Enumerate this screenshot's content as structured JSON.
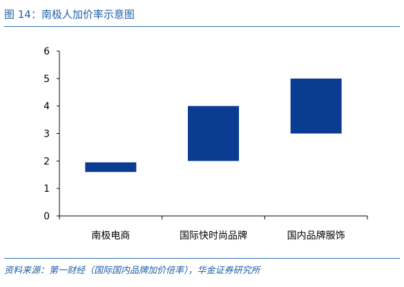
{
  "header": {
    "title": "图 14：南极人加价率示意图"
  },
  "footer": {
    "source": "资料来源：第一财经（国际国内品牌加价倍率），华金证券研究所"
  },
  "colors": {
    "accent": "#1f5fa8",
    "bar": "#0a3d91",
    "axis": "#000000"
  },
  "chart_data": {
    "type": "bar",
    "subtype": "floating-range",
    "categories": [
      "南极电商",
      "国际快时尚品牌",
      "国内品牌服饰"
    ],
    "ranges": [
      [
        1.6,
        1.95
      ],
      [
        2,
        4
      ],
      [
        3,
        5
      ]
    ],
    "ylim": [
      0,
      6
    ],
    "yticks": [
      0,
      1,
      2,
      3,
      4,
      5,
      6
    ],
    "grid": false,
    "legend": "none"
  }
}
